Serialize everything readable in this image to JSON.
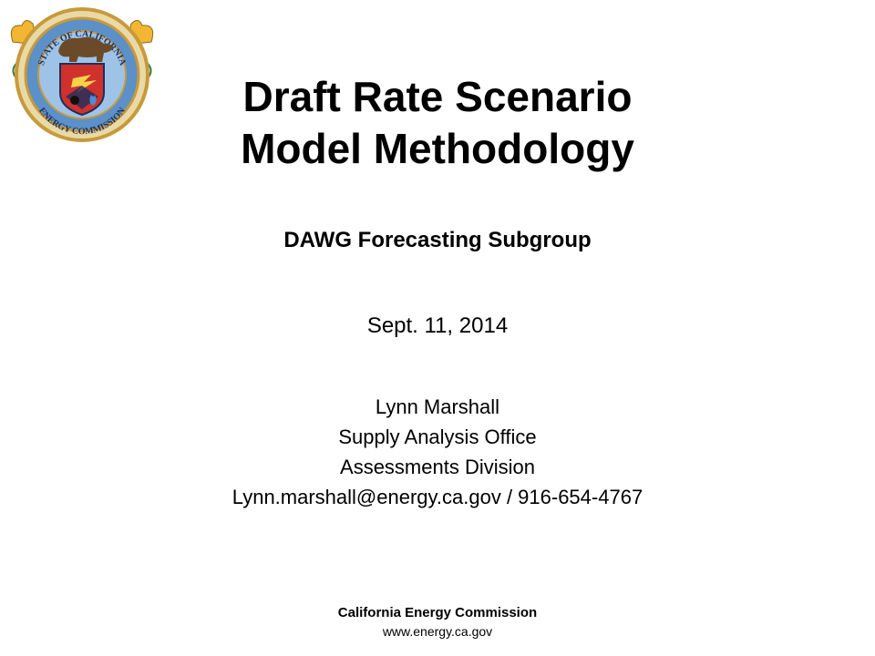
{
  "logo": {
    "name": "california-energy-commission-seal",
    "top_text": "STATE OF CALIFORNIA",
    "bottom_text": "ENERGY COMMISSION"
  },
  "slide": {
    "title_line1": "Draft Rate Scenario",
    "title_line2": "Model Methodology",
    "subtitle": "DAWG Forecasting Subgroup",
    "date": "Sept. 11, 2014",
    "author_name": "Lynn Marshall",
    "author_office": "Supply Analysis Office",
    "author_division": "Assessments Division",
    "contact": "Lynn.marshall@energy.ca.gov / 916-654-4767"
  },
  "footer": {
    "organization": "California Energy Commission",
    "website": "www.energy.ca.gov"
  },
  "colors": {
    "seal_gold": "#c79a3a",
    "seal_blue": "#2f6fb4",
    "seal_red": "#d0312d",
    "seal_dark": "#1d2f5c"
  }
}
